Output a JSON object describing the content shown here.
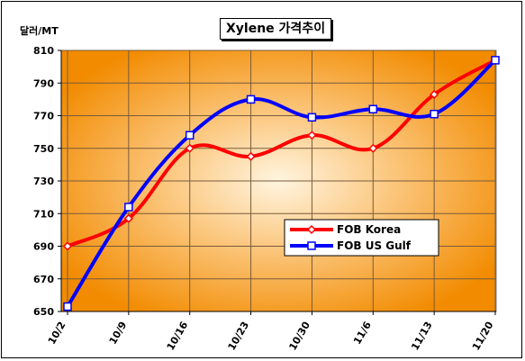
{
  "chart_data": {
    "type": "line",
    "title": "Xylene 가격추이",
    "ylabel": "달러/MT",
    "xlabel": "",
    "categories": [
      "10/2",
      "10/9",
      "10/16",
      "10/23",
      "10/30",
      "11/6",
      "11/13",
      "11/20"
    ],
    "ylim": [
      650,
      810
    ],
    "yticks": [
      650,
      670,
      690,
      710,
      730,
      750,
      770,
      790,
      810
    ],
    "grid": true,
    "legend_position": "lower-right",
    "series": [
      {
        "name": "FOB Korea",
        "color": "#ff0000",
        "values": [
          690,
          707,
          750,
          745,
          758,
          750,
          783,
          804
        ]
      },
      {
        "name": "FOB US Gulf",
        "color": "#0000ff",
        "values": [
          653,
          714,
          758,
          780,
          769,
          774,
          771,
          804
        ]
      }
    ],
    "background_colors": {
      "center": "#fff5e0",
      "edge": "#f28b00"
    }
  }
}
